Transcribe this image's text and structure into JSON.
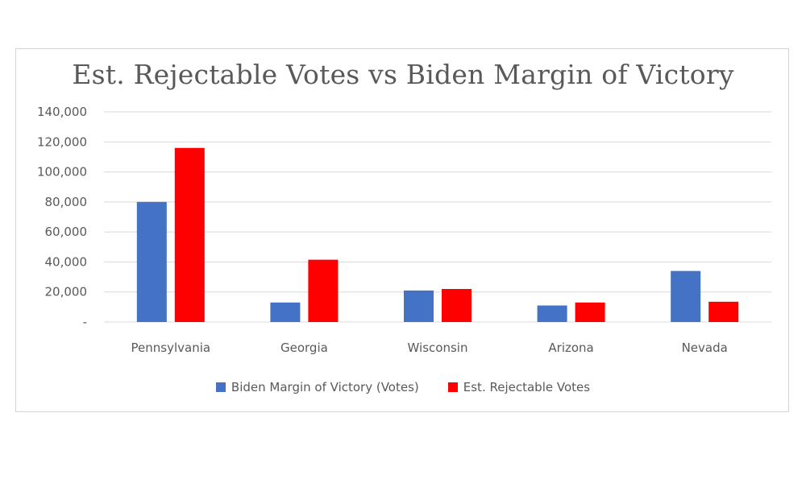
{
  "chart_data": {
    "type": "bar",
    "title": "Est. Rejectable Votes vs Biden Margin of Victory",
    "xlabel": "",
    "ylabel": "",
    "categories": [
      "Pennsylvania",
      "Georgia",
      "Wisconsin",
      "Arizona",
      "Nevada"
    ],
    "series": [
      {
        "name": "Biden Margin of Victory (Votes)",
        "color": "#4472c4",
        "values": [
          80000,
          13000,
          21000,
          11000,
          34000
        ]
      },
      {
        "name": "Est. Rejectable Votes",
        "color": "#ff0000",
        "values": [
          116000,
          41500,
          22000,
          13000,
          13500
        ]
      }
    ],
    "ylim": [
      0,
      140000
    ],
    "yticks": [
      0,
      20000,
      40000,
      60000,
      80000,
      100000,
      120000,
      140000
    ],
    "ytick_labels": [
      "-",
      "20,000",
      "40,000",
      "60,000",
      "80,000",
      "100,000",
      "120,000",
      "140,000"
    ],
    "grid": true,
    "legend_position": "bottom"
  }
}
